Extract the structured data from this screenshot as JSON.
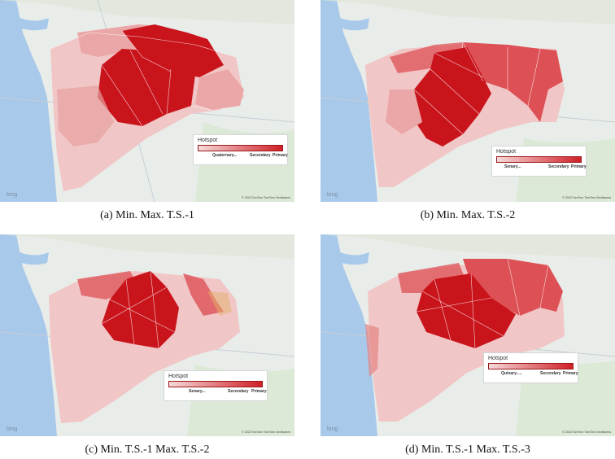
{
  "panels": [
    {
      "caption": "(a) Min. Max. T.S.-1",
      "legend": {
        "title": "Hotspot",
        "labels": [
          "Quaternary...",
          "Secondary",
          "Primary"
        ]
      },
      "bing": "bing",
      "copyright": "© 2023 TomTom  TomTom  GeoNames"
    },
    {
      "caption": "(b) Min. Max. T.S.-2",
      "legend": {
        "title": "Hotspot",
        "labels": [
          "Senary...",
          "Secondary",
          "Primary"
        ]
      },
      "bing": "bing",
      "copyright": "© 2023 TomTom  TomTom  GeoNames"
    },
    {
      "caption": "(c) Min. T.S.-1 Max. T.S.-2",
      "legend": {
        "title": "Hotspot",
        "labels": [
          "Senary...",
          "Secondary",
          "Primary"
        ]
      },
      "bing": "bing",
      "copyright": "© 2023 TomTom  TomTom  GeoNames"
    },
    {
      "caption": "(d) Min. T.S.-1 Max. T.S.-3",
      "legend": {
        "title": "Hotspot",
        "labels": [
          "Quinary.....",
          "Secondary",
          "Primary"
        ]
      },
      "bing": "bing",
      "copyright": "© 2023 TomTom  TomTom  GeoNames"
    }
  ],
  "colors": {
    "primary": "#c9141c",
    "secondary": "#dd5055",
    "light": "#eba7a7",
    "faint": "#f1c6c6",
    "sea": "#a9c9ea",
    "land": "#eaeeea"
  }
}
